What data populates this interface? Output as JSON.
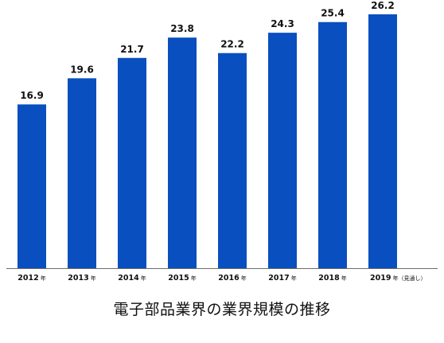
{
  "caption": "電子部品業界の業界規模の推移",
  "colors": {
    "bar": "#0a4fbf",
    "axis": "#6b6b6b",
    "text": "#111111"
  },
  "chart_data": {
    "type": "bar",
    "title": "電子部品業界の業界規模の推移",
    "categories": [
      "2012",
      "2013",
      "2014",
      "2015",
      "2016",
      "2017",
      "2018",
      "2019"
    ],
    "category_suffix": "年",
    "category_notes": [
      "",
      "",
      "",
      "",
      "",
      "",
      "",
      "（見通し）"
    ],
    "values": [
      16.9,
      19.6,
      21.7,
      23.8,
      22.2,
      24.3,
      25.4,
      26.2
    ],
    "value_labels": [
      "16.9",
      "19.6",
      "21.7",
      "23.8",
      "22.2",
      "24.3",
      "25.4",
      "26.2"
    ],
    "ylim": [
      0,
      26.2
    ],
    "grid": false,
    "legend": "none"
  }
}
